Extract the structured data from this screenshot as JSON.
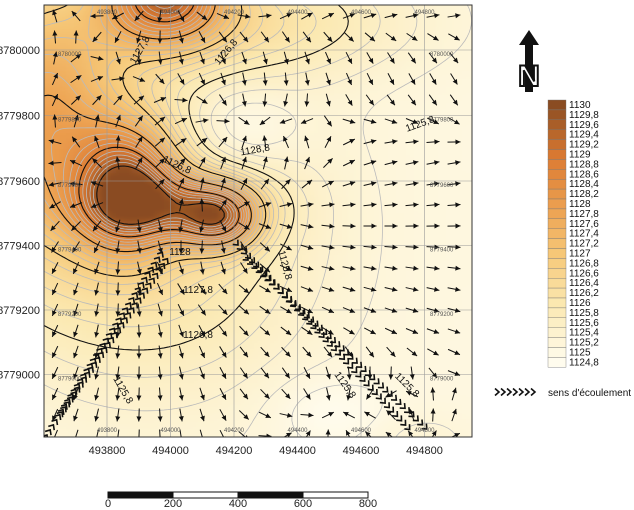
{
  "map": {
    "x_ticks": [
      "493800",
      "494000",
      "494200",
      "494400",
      "494600",
      "494800"
    ],
    "y_ticks": [
      "8780000",
      "8779800",
      "8779600",
      "8779400",
      "8779200",
      "8779000"
    ],
    "contour_labels": [
      "1127,8",
      "1126,8",
      "1128,8",
      "1125,8",
      "1126,8",
      "1128",
      "1125,8",
      "1127,8",
      "1126,8",
      "1125,8",
      "1125,8",
      "1125,8"
    ]
  },
  "north": "N",
  "legend": {
    "levels": [
      "1130",
      "1129,8",
      "1129,6",
      "1129,4",
      "1129,2",
      "1129",
      "1128,8",
      "1128,6",
      "1128,4",
      "1128,2",
      "1128",
      "1127,8",
      "1127,6",
      "1127,4",
      "1127,2",
      "1127",
      "1126,8",
      "1126,6",
      "1126,4",
      "1126,2",
      "1126",
      "1125,8",
      "1125,6",
      "1125,4",
      "1125,2",
      "1125",
      "1124,8"
    ],
    "flow_label": "sens d'écoulement"
  },
  "scale_bar": [
    "0",
    "200",
    "400",
    "600",
    "800"
  ]
}
